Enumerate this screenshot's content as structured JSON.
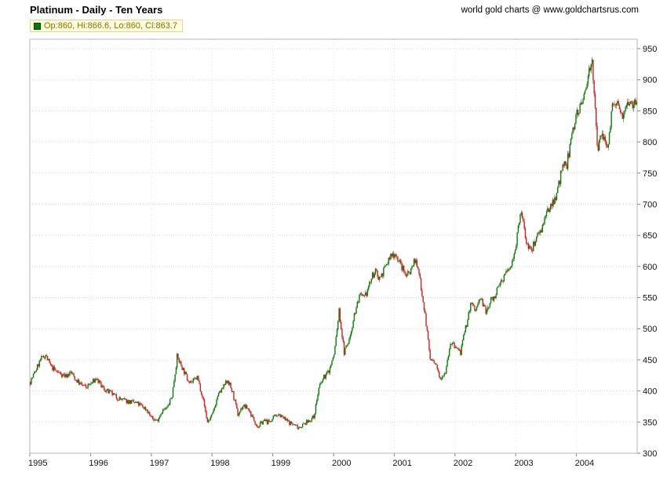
{
  "header": {
    "title": "Platinum - Daily - Ten Years",
    "source": "world gold charts @ www.goldchartsrus.com"
  },
  "legend": {
    "ohlc": "Op:860, Hi:866.6, Lo:860, Cl:863.7"
  },
  "chart_data": {
    "type": "candlestick",
    "title": "Platinum - Daily - Ten Years",
    "x_domain": [
      1995,
      2005
    ],
    "ylim": [
      300,
      950
    ],
    "y_ticks": [
      300,
      350,
      400,
      450,
      500,
      550,
      600,
      650,
      700,
      750,
      800,
      850,
      900,
      950
    ],
    "x_ticks": [
      1995,
      1996,
      1997,
      1998,
      1999,
      2000,
      2001,
      2002,
      2003,
      2004
    ],
    "last_candle": {
      "open": 860,
      "high": 866.6,
      "low": 860,
      "close": 863.7
    },
    "candles_per_month": 5,
    "monthly_close": [
      415,
      432,
      450,
      458,
      440,
      432,
      428,
      424,
      430,
      418,
      410,
      406,
      412,
      420,
      408,
      400,
      396,
      390,
      386,
      384,
      382,
      380,
      376,
      370,
      356,
      352,
      368,
      372,
      392,
      455,
      438,
      420,
      414,
      422,
      392,
      350,
      362,
      392,
      404,
      418,
      396,
      362,
      376,
      372,
      356,
      342,
      352,
      350,
      356,
      364,
      356,
      350,
      346,
      342,
      346,
      352,
      358,
      404,
      422,
      432,
      458,
      528,
      462,
      482,
      522,
      552,
      548,
      572,
      592,
      582,
      596,
      614,
      622,
      606,
      588,
      592,
      612,
      580,
      522,
      452,
      442,
      422,
      432,
      478,
      470,
      462,
      500,
      540,
      530,
      550,
      526,
      546,
      556,
      576,
      590,
      600,
      640,
      688,
      640,
      624,
      650,
      662,
      682,
      702,
      716,
      756,
      764,
      812,
      850,
      858,
      902,
      934,
      788,
      814,
      792,
      854,
      858,
      846,
      868,
      863.7
    ],
    "colors": {
      "up": "#0b7a0b",
      "down": "#cc2020",
      "grid": "#d9d9d9",
      "vgrid": "#e6e6e6",
      "border": "#b4b4b4",
      "tick": "#808080",
      "label": "#111111"
    }
  }
}
